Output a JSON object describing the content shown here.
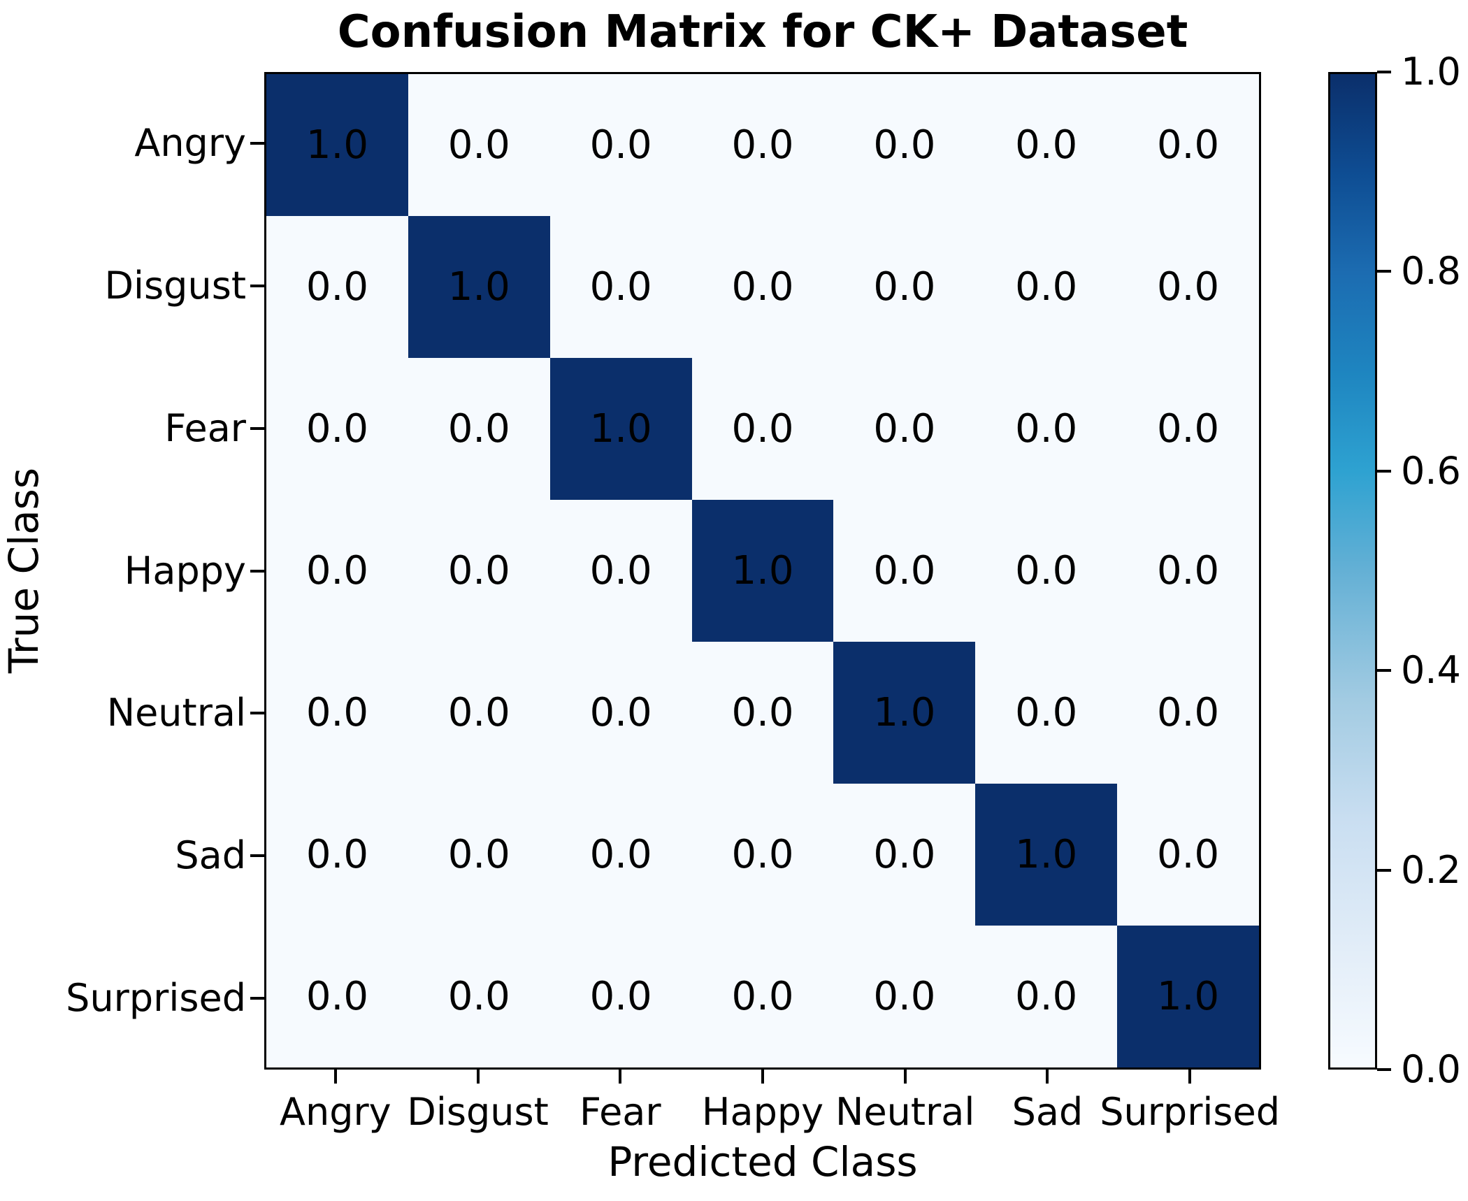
{
  "title": "Confusion Matrix for CK+ Dataset",
  "chart_data": {
    "type": "heatmap",
    "title": "Confusion Matrix for CK+ Dataset",
    "xlabel": "Predicted Class",
    "ylabel": "True Class",
    "x_categories": [
      "Angry",
      "Disgust",
      "Fear",
      "Happy",
      "Neutral",
      "Sad",
      "Surprised"
    ],
    "y_categories": [
      "Angry",
      "Disgust",
      "Fear",
      "Happy",
      "Neutral",
      "Sad",
      "Surprised"
    ],
    "matrix": [
      [
        1.0,
        0.0,
        0.0,
        0.0,
        0.0,
        0.0,
        0.0
      ],
      [
        0.0,
        1.0,
        0.0,
        0.0,
        0.0,
        0.0,
        0.0
      ],
      [
        0.0,
        0.0,
        1.0,
        0.0,
        0.0,
        0.0,
        0.0
      ],
      [
        0.0,
        0.0,
        0.0,
        1.0,
        0.0,
        0.0,
        0.0
      ],
      [
        0.0,
        0.0,
        0.0,
        0.0,
        1.0,
        0.0,
        0.0
      ],
      [
        0.0,
        0.0,
        0.0,
        0.0,
        0.0,
        1.0,
        0.0
      ],
      [
        0.0,
        0.0,
        0.0,
        0.0,
        0.0,
        0.0,
        1.0
      ]
    ],
    "value_decimals": 1,
    "colormap": "Blues",
    "legend_position": "right-colorbar",
    "grid": false,
    "colorbar": {
      "min": 0.0,
      "max": 1.0,
      "tick_labels": [
        "1.0",
        "0.8",
        "0.6",
        "0.4",
        "0.2",
        "0.0"
      ],
      "tick_values": [
        1.0,
        0.8,
        0.6,
        0.4,
        0.2,
        0.0
      ],
      "gradient_stops_bottom_to_top": [
        {
          "at": 0.0,
          "color": "#f7fbff"
        },
        {
          "at": 0.12,
          "color": "#e2edf8"
        },
        {
          "at": 0.25,
          "color": "#c9def1"
        },
        {
          "at": 0.37,
          "color": "#a2cbe2"
        },
        {
          "at": 0.5,
          "color": "#64b0d5"
        },
        {
          "at": 0.6,
          "color": "#2ea2d1"
        },
        {
          "at": 0.7,
          "color": "#1e85c0"
        },
        {
          "at": 0.8,
          "color": "#1c6cb1"
        },
        {
          "at": 0.9,
          "color": "#0e4d93"
        },
        {
          "at": 1.0,
          "color": "#0b2f6b"
        }
      ]
    },
    "colors": {
      "cell_high": "#0b2f6b",
      "cell_low": "#f6fafe",
      "cell_text": "#000000",
      "axis_line": "#000000",
      "background": "#ffffff"
    }
  }
}
